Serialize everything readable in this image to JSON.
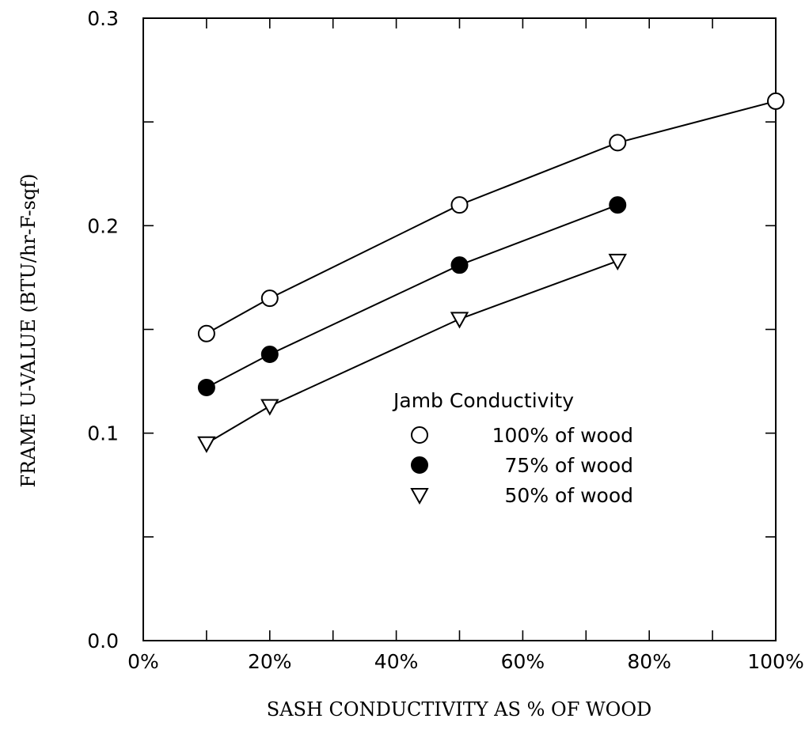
{
  "chart_data": {
    "type": "line",
    "title": "",
    "xlabel": "SASH CONDUCTIVITY AS % OF WOOD",
    "ylabel": "FRAME U-VALUE  (BTU/hr-F-sqf)",
    "xlim": [
      0,
      100
    ],
    "ylim": [
      0.0,
      0.3
    ],
    "xticks": [
      0,
      20,
      40,
      60,
      80,
      100
    ],
    "xtick_labels": [
      "0%",
      "20%",
      "40%",
      "60%",
      "80%",
      "100%"
    ],
    "yticks": [
      0.0,
      0.1,
      0.2,
      0.3
    ],
    "ytick_labels": [
      "0.0",
      "0.1",
      "0.2",
      "0.3"
    ],
    "grid": false,
    "legend": {
      "title": "Jamb Conductivity",
      "placement": "center-right"
    },
    "series": [
      {
        "name": "100% of wood",
        "marker": "open-circle",
        "x": [
          10,
          20,
          50,
          75,
          100
        ],
        "y": [
          0.148,
          0.165,
          0.21,
          0.24,
          0.26
        ]
      },
      {
        "name": "75% of wood",
        "marker": "filled-circle",
        "x": [
          10,
          20,
          50,
          75
        ],
        "y": [
          0.122,
          0.138,
          0.181,
          0.21
        ]
      },
      {
        "name": "50% of wood",
        "marker": "open-triangle-down",
        "x": [
          10,
          20,
          50,
          75
        ],
        "y": [
          0.095,
          0.113,
          0.155,
          0.183
        ]
      }
    ]
  }
}
